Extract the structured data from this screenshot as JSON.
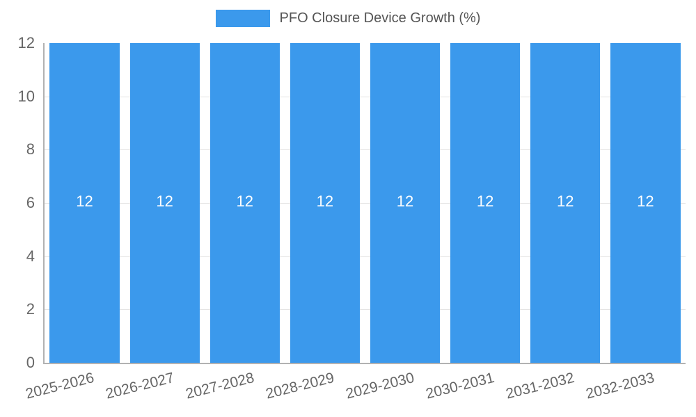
{
  "chart_data": {
    "type": "bar",
    "title": "PFO Closure Device Growth (%)",
    "categories": [
      "2025-2026",
      "2026-2027",
      "2027-2028",
      "2028-2029",
      "2029-2030",
      "2030-2031",
      "2031-2032",
      "2032-2033"
    ],
    "values": [
      12,
      12,
      12,
      12,
      12,
      12,
      12,
      12
    ],
    "value_labels": [
      "12",
      "12",
      "12",
      "12",
      "12",
      "12",
      "12",
      "12"
    ],
    "xlabel": "",
    "ylabel": "",
    "ylim": [
      0,
      12
    ],
    "yticks": [
      0,
      2,
      4,
      6,
      8,
      10,
      12
    ],
    "grid": true,
    "legend_position": "top-center",
    "bar_color": "#3B99EC",
    "value_label_color": "#FFFFFF",
    "axis_text_color": "#666666",
    "grid_color": "#E2E2E2",
    "axis_line_color": "#B2B2B2"
  }
}
